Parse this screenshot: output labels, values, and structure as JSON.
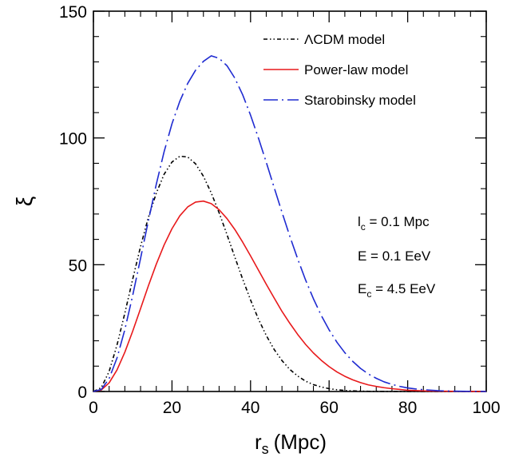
{
  "chart_data": {
    "type": "line",
    "title": "",
    "xlabel": "r",
    "xlabel_sub": "s",
    "xlabel_unit": "(Mpc)",
    "ylabel": "ξ",
    "xlim": [
      0,
      100
    ],
    "ylim": [
      0,
      150
    ],
    "x_ticks": [
      0,
      20,
      40,
      60,
      80,
      100
    ],
    "y_ticks": [
      0,
      50,
      100,
      150
    ],
    "grid": false,
    "legend_position": "top-right",
    "series": [
      {
        "name": "ΛCDM model",
        "color": "#000000",
        "style": "dash-dot-dot",
        "x": [
          0,
          2,
          4,
          6,
          8,
          10,
          12,
          14,
          16,
          18,
          20,
          22,
          24,
          26,
          28,
          30,
          32,
          34,
          36,
          38,
          40,
          42,
          44,
          46,
          48,
          50,
          52,
          54,
          56,
          58,
          60,
          62,
          64,
          66,
          68,
          70,
          75,
          80,
          90,
          100
        ],
        "y": [
          0,
          1.5,
          7.9,
          18.3,
          30.9,
          44.3,
          57.2,
          68.7,
          78.2,
          85.7,
          90.5,
          92.8,
          92.5,
          89.8,
          84.9,
          78.3,
          70.5,
          61.9,
          53.0,
          44.3,
          36.1,
          28.6,
          22.1,
          16.6,
          12.2,
          8.7,
          6.1,
          4.1,
          2.7,
          1.8,
          1.1,
          0.7,
          0.4,
          0.25,
          0.15,
          0.08,
          0.02,
          0,
          0,
          0
        ]
      },
      {
        "name": "Power-law model",
        "color": "#e8191b",
        "style": "solid",
        "x": [
          0,
          2,
          4,
          6,
          8,
          10,
          12,
          14,
          16,
          18,
          20,
          22,
          24,
          26,
          28,
          30,
          32,
          34,
          36,
          38,
          40,
          42,
          44,
          46,
          48,
          50,
          52,
          54,
          56,
          58,
          60,
          62,
          64,
          66,
          68,
          70,
          72,
          74,
          76,
          78,
          80,
          85,
          90,
          95,
          100
        ],
        "y": [
          0,
          0.6,
          3.4,
          8.5,
          15.5,
          23.8,
          32.7,
          41.7,
          50.2,
          57.8,
          64.2,
          69.3,
          72.8,
          74.7,
          75.1,
          74.1,
          71.7,
          68.2,
          63.9,
          58.9,
          53.5,
          47.9,
          42.3,
          36.9,
          31.6,
          26.9,
          22.5,
          18.6,
          15.2,
          12.3,
          9.8,
          7.7,
          6.0,
          4.6,
          3.5,
          2.6,
          2.0,
          1.5,
          1.1,
          0.8,
          0.5,
          0.2,
          0.1,
          0.03,
          0
        ]
      },
      {
        "name": "Starobinsky model",
        "color": "#1f2bd1",
        "style": "long-dash-dot",
        "x": [
          0,
          2,
          4,
          6,
          8,
          10,
          12,
          14,
          16,
          18,
          20,
          22,
          24,
          26,
          28,
          30,
          32,
          34,
          36,
          38,
          40,
          42,
          44,
          46,
          48,
          50,
          52,
          54,
          56,
          58,
          60,
          62,
          64,
          66,
          68,
          70,
          72,
          74,
          76,
          78,
          80,
          82,
          84,
          86,
          88,
          90,
          95,
          100
        ],
        "y": [
          0,
          0.8,
          5.1,
          13.2,
          24.4,
          37.9,
          52.5,
          67.4,
          81.7,
          94.6,
          105.6,
          114.5,
          121.5,
          126.7,
          130.2,
          132.4,
          131.4,
          128.5,
          123.6,
          117.0,
          109.0,
          100.0,
          90.4,
          80.5,
          70.7,
          61.2,
          52.3,
          44.0,
          36.6,
          30.0,
          24.3,
          19.4,
          15.3,
          11.9,
          9.1,
          6.9,
          5.2,
          3.8,
          2.8,
          2.0,
          1.4,
          1.0,
          0.7,
          0.5,
          0.3,
          0.2,
          0.05,
          0
        ]
      }
    ],
    "annotations": [
      {
        "text": "l",
        "sub": "c",
        "rest": " = 0.1 Mpc"
      },
      {
        "text": "E = 0.1 EeV",
        "sub": "",
        "rest": ""
      },
      {
        "text": "E",
        "sub": "c",
        "rest": " = 4.5 EeV"
      }
    ]
  }
}
